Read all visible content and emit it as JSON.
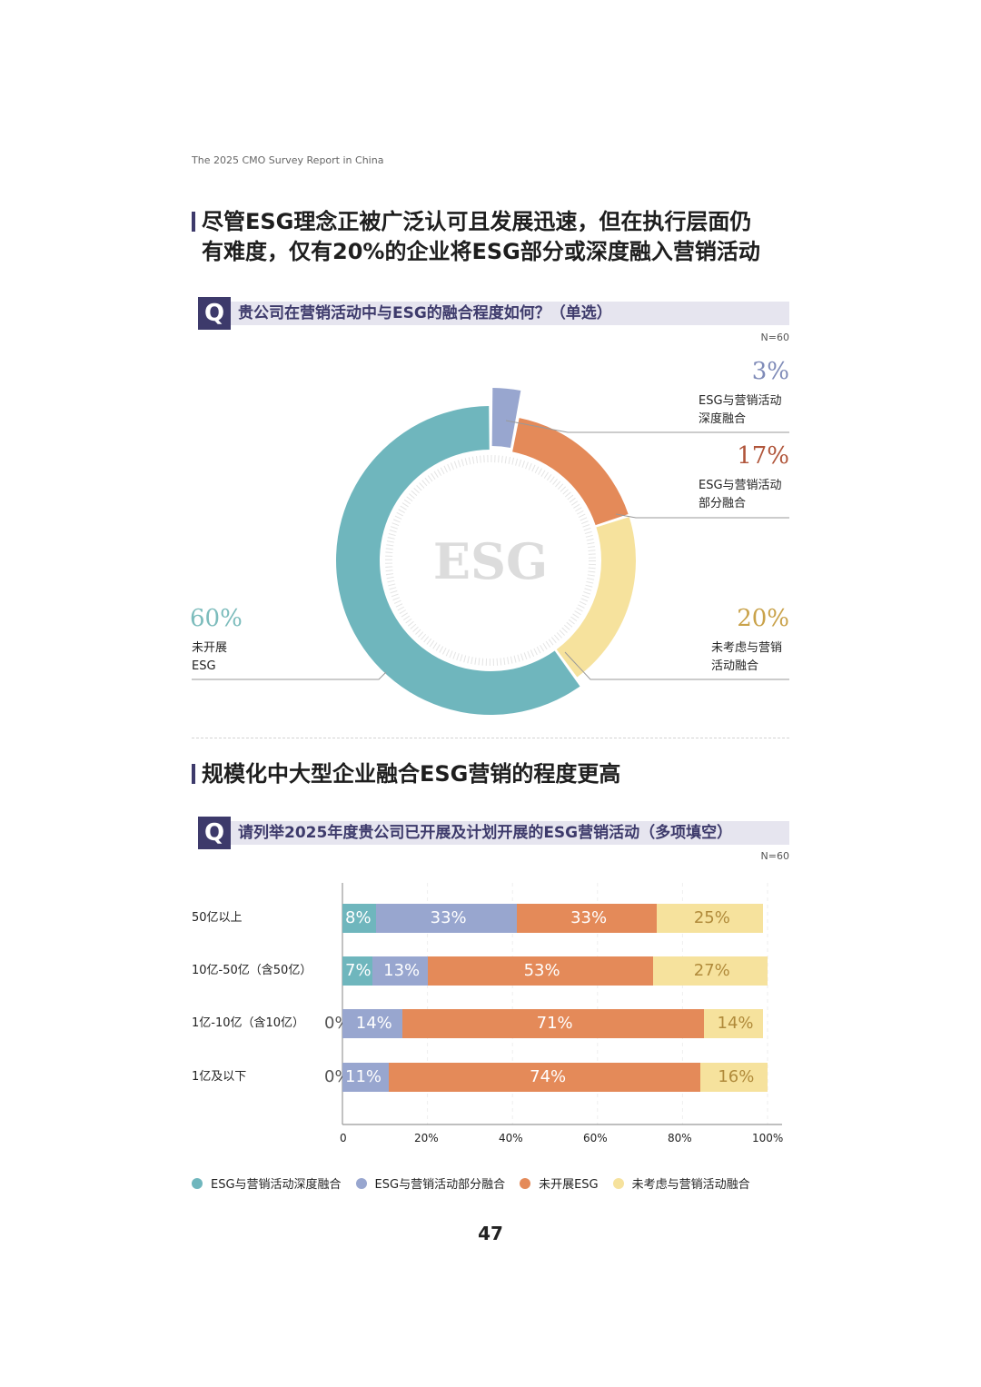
{
  "header": {
    "report_title": "The 2025 CMO Survey Report in China"
  },
  "section1": {
    "headline_line1": "尽管ESG理念正被广泛认可且发展迅速，但在执行层面仍",
    "headline_line2": "有难度，仅有20%的企业将ESG部分或深度融入营销活动",
    "question_icon": "Q",
    "question": "贵公司在营销活动中与ESG的融合程度如何？（单选）",
    "sample_size": "N=60",
    "center_label": "ESG",
    "callouts": [
      {
        "pct": "3%",
        "label_line1": "ESG与营销活动",
        "label_line2": "深度融合",
        "color": "#7f8bb8"
      },
      {
        "pct": "17%",
        "label_line1": "ESG与营销活动",
        "label_line2": "部分融合",
        "color": "#b0553a"
      },
      {
        "pct": "20%",
        "label_line1": "未考虑与营销",
        "label_line2": "活动融合",
        "color": "#c9a24a"
      },
      {
        "pct": "60%",
        "label_line1": "未开展",
        "label_line2": "ESG",
        "color": "#7cbcbc"
      }
    ]
  },
  "section2": {
    "headline": "规模化中大型企业融合ESG营销的程度更高",
    "question_icon": "Q",
    "question": "请列举2025年度贵公司已开展及计划开展的ESG营销活动（多项填空）",
    "sample_size": "N=60",
    "axis_ticks": [
      "0",
      "20%",
      "40%",
      "60%",
      "80%",
      "100%"
    ],
    "rows": [
      {
        "category": "50亿以上",
        "labels": [
          "8%",
          "33%",
          "33%",
          "25%"
        ],
        "zero_label": ""
      },
      {
        "category": "10亿-50亿（含50亿）",
        "labels": [
          "7%",
          "13%",
          "53%",
          "27%"
        ],
        "zero_label": ""
      },
      {
        "category": "1亿-10亿（含10亿）",
        "labels": [
          "",
          "14%",
          "71%",
          "14%"
        ],
        "zero_label": "0%"
      },
      {
        "category": "1亿及以下",
        "labels": [
          "",
          "11%",
          "74%",
          "16%"
        ],
        "zero_label": "0%"
      }
    ],
    "legend": [
      {
        "label": "ESG与营销活动深度融合",
        "color": "#6fb6bd"
      },
      {
        "label": "ESG与营销活动部分融合",
        "color": "#98a6cf"
      },
      {
        "label": "未开展ESG",
        "color": "#e48a59"
      },
      {
        "label": "未考虑与营销活动融合",
        "color": "#f6e29d"
      }
    ]
  },
  "page_number": "47",
  "chart_data": [
    {
      "type": "pie",
      "title": "贵公司在营销活动中与ESG的融合程度如何？（单选）",
      "subtitle": "N=60",
      "center_text": "ESG",
      "categories": [
        "ESG与营销活动深度融合",
        "ESG与营销活动部分融合",
        "未考虑与营销活动融合",
        "未开展ESG"
      ],
      "values": [
        3,
        17,
        20,
        60
      ],
      "colors": [
        "#98a6cf",
        "#e48a59",
        "#f6e29d",
        "#6fb6bd"
      ],
      "donut": true
    },
    {
      "type": "bar",
      "orientation": "horizontal",
      "stacked": true,
      "title": "请列举2025年度贵公司已开展及计划开展的ESG营销活动（多项填空）",
      "subtitle": "N=60",
      "categories": [
        "50亿以上",
        "10亿-50亿（含50亿）",
        "1亿-10亿（含10亿）",
        "1亿及以下"
      ],
      "series": [
        {
          "name": "ESG与营销活动深度融合",
          "values": [
            8,
            7,
            0,
            0
          ],
          "color": "#6fb6bd"
        },
        {
          "name": "ESG与营销活动部分融合",
          "values": [
            33,
            13,
            14,
            11
          ],
          "color": "#98a6cf"
        },
        {
          "name": "未开展ESG",
          "values": [
            33,
            53,
            71,
            74
          ],
          "color": "#e48a59"
        },
        {
          "name": "未考虑与营销活动融合",
          "values": [
            25,
            27,
            14,
            16
          ],
          "color": "#f6e29d"
        }
      ],
      "xlabel": "",
      "ylabel": "",
      "xlim": [
        0,
        100
      ],
      "xticks": [
        "0",
        "20%",
        "40%",
        "60%",
        "80%",
        "100%"
      ],
      "grid": true,
      "legend_position": "bottom"
    }
  ]
}
